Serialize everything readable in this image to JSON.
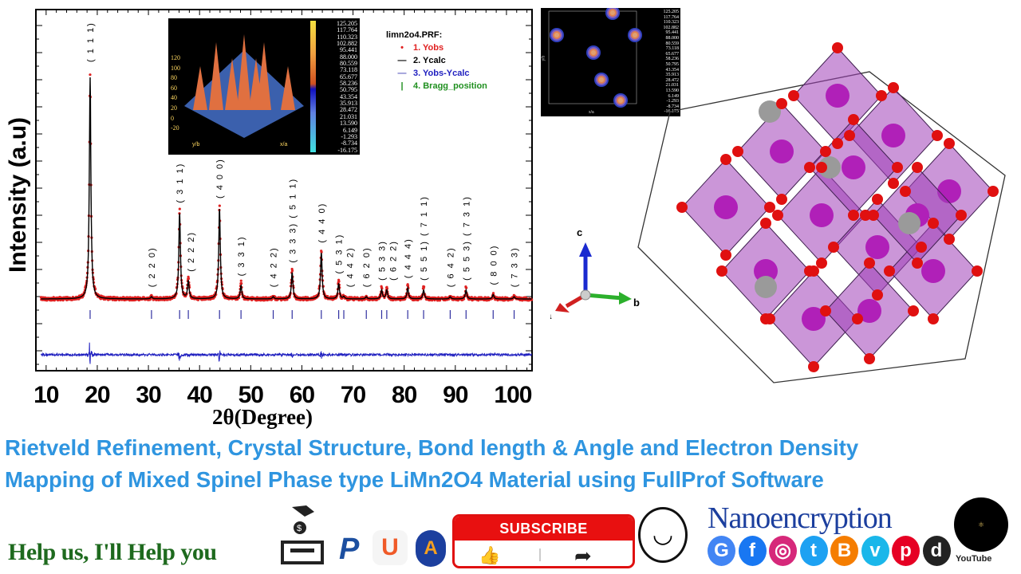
{
  "chart_data": {
    "type": "line",
    "xlabel": "2θ(Degree)",
    "ylabel": "Intensity (a.u)",
    "xlim": [
      8,
      105
    ],
    "x_ticks": [
      "10",
      "20",
      "30",
      "40",
      "50",
      "60",
      "70",
      "80",
      "90",
      "100"
    ],
    "grid": false,
    "legend_position": "top-right",
    "legend": {
      "title": "limn2o4.PRF:",
      "entries": [
        {
          "label": "1. Yobs",
          "color": "#e02020",
          "marker": "dot"
        },
        {
          "label": "2. Ycalc",
          "color": "#000000",
          "marker": "line"
        },
        {
          "label": "3. Yobs-Ycalc",
          "color": "#2020c0",
          "marker": "line"
        },
        {
          "label": "4. Bragg_position",
          "color": "#209020",
          "marker": "bar"
        }
      ]
    },
    "peaks": [
      {
        "hkl": "( 1 1 1)",
        "two_theta": 18.6,
        "intensity": 100
      },
      {
        "hkl": "( 2 2 0)",
        "two_theta": 30.6,
        "intensity": 1
      },
      {
        "hkl": "( 3 1 1)",
        "two_theta": 36.1,
        "intensity": 39
      },
      {
        "hkl": "( 2 2 2)",
        "two_theta": 37.8,
        "intensity": 8
      },
      {
        "hkl": "( 4 0 0)",
        "two_theta": 43.9,
        "intensity": 41
      },
      {
        "hkl": "( 3 3 1)",
        "two_theta": 48.1,
        "intensity": 6
      },
      {
        "hkl": "( 4 2 2)",
        "two_theta": 54.4,
        "intensity": 1
      },
      {
        "hkl": "( 3 3 3) ( 5 1 1)",
        "two_theta": 58.1,
        "intensity": 12
      },
      {
        "hkl": "( 4 4 0)",
        "two_theta": 63.8,
        "intensity": 21
      },
      {
        "hkl": "( 5 3 1)",
        "two_theta": 67.2,
        "intensity": 7
      },
      {
        "hkl": "( 4 4 2)",
        "two_theta": 68.2,
        "intensity": 1
      },
      {
        "hkl": "( 6 2 0)",
        "two_theta": 72.6,
        "intensity": 1
      },
      {
        "hkl": "( 5 3 3)",
        "two_theta": 75.6,
        "intensity": 4
      },
      {
        "hkl": "( 6 2 2)",
        "two_theta": 76.6,
        "intensity": 4
      },
      {
        "hkl": "( 4 4 4)",
        "two_theta": 80.7,
        "intensity": 5
      },
      {
        "hkl": "( 5 5 1) ( 7 1 1)",
        "two_theta": 83.8,
        "intensity": 4
      },
      {
        "hkl": "( 6 4 2)",
        "two_theta": 89.0,
        "intensity": 1
      },
      {
        "hkl": "( 5 5 3) ( 7 3 1)",
        "two_theta": 92.1,
        "intensity": 4
      },
      {
        "hkl": "( 8 0 0)",
        "two_theta": 97.4,
        "intensity": 2
      },
      {
        "hkl": "( 7 3 3)",
        "two_theta": 101.5,
        "intensity": 1
      }
    ]
  },
  "inset_3d": {
    "z_ticks": [
      "120",
      "100",
      "80",
      "60",
      "40",
      "20",
      "0",
      "-20"
    ],
    "xaxis_label": "x/a",
    "yaxis_label": "y/b",
    "colorbar": [
      "125.205",
      "117.764",
      "110.323",
      "102.882",
      "95.441",
      "88.000",
      "80.559",
      "73.118",
      "65.677",
      "58.236",
      "50.795",
      "43.354",
      "35.913",
      "28.472",
      "21.031",
      "13.590",
      "6.149",
      "-1.293",
      "-8.734",
      "-16.175"
    ]
  },
  "inset_contour": {
    "xaxis_label": "x/a",
    "yaxis_label": "y/b"
  },
  "structure_axes": {
    "a": "a",
    "b": "b",
    "c": "c"
  },
  "title_line1": "Rietveld Refinement, Crystal Structure, Bond length & Angle and Electron Density",
  "title_line2": "Mapping of Mixed Spinel Phase type LiMn2O4 Material using FullProf Software",
  "footer": {
    "help_text": "Help us, I'll Help you",
    "subscribe_label": "SUBSCRIBE",
    "brand": "Nanoencryption",
    "youtube_label": "YouTube",
    "social": [
      {
        "icon": "google-icon",
        "glyph": "G",
        "color": "#4285f4"
      },
      {
        "icon": "facebook-icon",
        "glyph": "f",
        "color": "#1877f2"
      },
      {
        "icon": "instagram-icon",
        "glyph": "◎",
        "color": "#d6287a"
      },
      {
        "icon": "twitter-icon",
        "glyph": "t",
        "color": "#1da1f2"
      },
      {
        "icon": "blogger-icon",
        "glyph": "B",
        "color": "#f57d00"
      },
      {
        "icon": "vimeo-icon",
        "glyph": "v",
        "color": "#1ab7ea"
      },
      {
        "icon": "pinterest-icon",
        "glyph": "p",
        "color": "#e60023"
      },
      {
        "icon": "dailymotion-icon",
        "glyph": "d",
        "color": "#222222"
      }
    ]
  }
}
